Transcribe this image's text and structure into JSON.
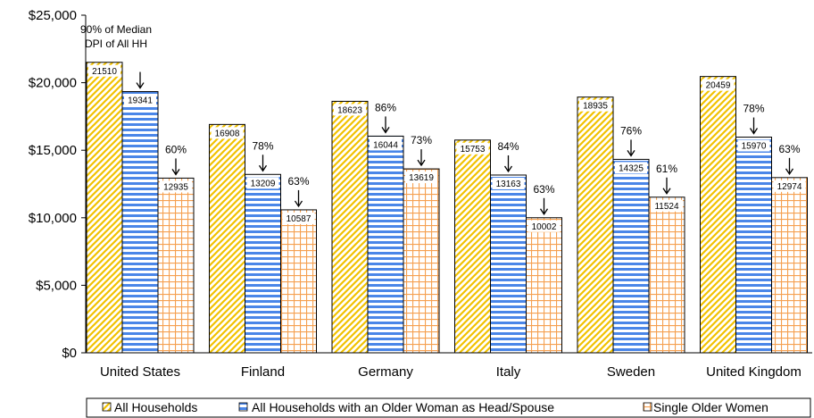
{
  "chart_data": {
    "type": "bar",
    "categories": [
      "United States",
      "Finland",
      "Germany",
      "Italy",
      "Sweden",
      "United Kingdom"
    ],
    "series": [
      {
        "name": "All Households",
        "values": [
          21510,
          16908,
          18623,
          15753,
          18935,
          20459
        ],
        "color": "#f2c200",
        "pattern": "diagonal"
      },
      {
        "name": "All Households with an Older Woman as Head/Spouse",
        "values": [
          19341,
          13209,
          16044,
          13163,
          14325,
          15970
        ],
        "color": "#4a86e8",
        "pattern": "horizontal"
      },
      {
        "name": "Single Older Women",
        "values": [
          12935,
          10587,
          13619,
          10002,
          11524,
          12974
        ],
        "color": "#f5a050",
        "pattern": "grid"
      }
    ],
    "percent_labels": {
      "series_2": [
        "",
        "78%",
        "86%",
        "84%",
        "76%",
        "78%"
      ],
      "series_3": [
        "60%",
        "63%",
        "73%",
        "63%",
        "61%",
        "63%"
      ]
    },
    "annotation": {
      "line1": "90% of Median",
      "line2": "DPI of All HH"
    },
    "y_ticks": [
      "$0",
      "$5,000",
      "$10,000",
      "$15,000",
      "$20,000",
      "$25,000"
    ],
    "ylim": [
      0,
      25000
    ],
    "title": "",
    "xlabel": "",
    "ylabel": "",
    "legend_position": "bottom",
    "grid": false
  }
}
